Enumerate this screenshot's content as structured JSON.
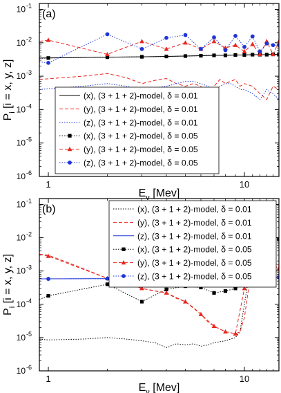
{
  "chart_data": [
    {
      "type": "line",
      "panel_label": "(a)",
      "xlabel_main": "E",
      "xlabel_sub": "ν",
      "xlabel_rest": " [Mev]",
      "ylabel_main": "P",
      "ylabel_sub": "i",
      "ylabel_rest": " [i = x, y, z]",
      "x_scale": "log",
      "y_scale": "log",
      "xlim": [
        0.9,
        15
      ],
      "ylim": [
        1e-06,
        0.15
      ],
      "x_ticks": [
        {
          "value": 1,
          "label": "1"
        },
        {
          "value": 10,
          "label": "10"
        }
      ],
      "y_ticks": [
        {
          "value": 1e-06,
          "base": "10",
          "exp": "-6"
        },
        {
          "value": 1e-05,
          "base": "10",
          "exp": "-5"
        },
        {
          "value": 0.0001,
          "base": "10",
          "exp": "-4"
        },
        {
          "value": 0.001,
          "base": "10",
          "exp": "-3"
        },
        {
          "value": 0.01,
          "base": "10",
          "exp": "-2"
        },
        {
          "value": 0.1,
          "base": "10",
          "exp": "-1"
        }
      ],
      "legend_position": "bottom-center",
      "series": [
        {
          "name": "(x), (3 + 1 + 2)-model, δ = 0.01",
          "color": "#000000",
          "dash": "solid",
          "marker": "none",
          "x": [
            0.9,
            2,
            3,
            4,
            5,
            6,
            7,
            8,
            9,
            10,
            11,
            12,
            13,
            14,
            15
          ],
          "y": [
            0.0035,
            0.0037,
            0.0038,
            0.0039,
            0.004,
            0.0041,
            0.0042,
            0.0042,
            0.0043,
            0.0043,
            0.0044,
            0.0044,
            0.0044,
            0.0045,
            0.0045
          ]
        },
        {
          "name": "(y), (3 + 1 + 2)-model, δ = 0.01",
          "color": "#e8261f",
          "dash": "5,3",
          "marker": "none",
          "x": [
            0.9,
            1.5,
            2,
            2.5,
            3,
            3.5,
            4,
            4.5,
            5,
            5.5,
            6,
            6.5,
            7,
            7.5,
            8,
            8.5,
            9,
            9.5,
            10,
            11,
            12,
            13,
            14,
            15
          ],
          "y": [
            0.0008,
            0.001,
            0.0012,
            0.0009,
            0.0006,
            0.00075,
            0.00085,
            0.0006,
            0.0005,
            0.0006,
            0.0005,
            0.00015,
            0.0005,
            0.0008,
            0.0006,
            0.0007,
            0.0008,
            0.0005,
            0.0006,
            0.0005,
            0.0003,
            0.0002,
            0.0005,
            0.0004
          ]
        },
        {
          "name": "(z), (3 + 1 + 2)-model, δ = 0.01",
          "color": "#1f35d6",
          "dash": "1.5,2",
          "marker": "none",
          "x": [
            0.9,
            1.5,
            2,
            2.5,
            3,
            3.5,
            4,
            4.5,
            5,
            5.5,
            6,
            6.5,
            7,
            7.5,
            8,
            8.5,
            9,
            9.5,
            10,
            11,
            12,
            13,
            14,
            15
          ],
          "y": [
            0.0004,
            0.0005,
            0.0006,
            0.0005,
            0.0004,
            0.00045,
            0.0005,
            0.0006,
            0.0007,
            0.0007,
            0.0006,
            0.0005,
            0.0004,
            0.0005,
            0.0006,
            0.0006,
            0.0005,
            0.0004,
            0.0004,
            0.0003,
            0.0002,
            0.0004,
            0.0003,
            0.0002
          ]
        },
        {
          "name": "(x), (3 + 1 + 2)-model, δ = 0.05",
          "color": "#000000",
          "dash": "1.5,2",
          "marker": "square",
          "x": [
            0.9,
            1,
            2,
            3,
            4,
            5,
            6,
            7,
            8,
            9,
            10,
            11,
            12,
            13,
            14,
            15
          ],
          "y": [
            0.0034,
            0.0035,
            0.0037,
            0.0038,
            0.0039,
            0.004,
            0.0041,
            0.0042,
            0.0042,
            0.0043,
            0.0043,
            0.0044,
            0.0044,
            0.0044,
            0.0045,
            0.0045
          ]
        },
        {
          "name": "(y), (3 + 1 + 2)-model, δ = 0.05",
          "color": "#e8261f",
          "dash": "5,3",
          "marker": "triangle",
          "x": [
            0.9,
            1,
            2,
            3,
            4,
            5,
            6,
            7,
            8,
            9,
            10,
            11,
            12,
            13,
            14,
            15
          ],
          "y": [
            0.011,
            0.012,
            0.0045,
            0.011,
            0.0065,
            0.01,
            0.0065,
            0.011,
            0.007,
            0.0085,
            0.0055,
            0.009,
            0.0045,
            0.011,
            0.0045,
            0.011
          ]
        },
        {
          "name": "(z), (3 + 1 + 2)-model, δ = 0.05",
          "color": "#1f35d6",
          "dash": "1.5,2",
          "marker": "circle",
          "x": [
            0.9,
            1,
            2,
            3,
            4,
            5,
            6,
            7,
            8,
            9,
            10,
            11,
            12,
            13,
            14,
            15
          ],
          "y": [
            0.0027,
            0.0025,
            0.018,
            0.0065,
            0.014,
            0.017,
            0.0065,
            0.0145,
            0.006,
            0.016,
            0.0075,
            0.0155,
            0.0055,
            0.0095,
            0.0085,
            0.0085
          ]
        }
      ]
    },
    {
      "type": "line",
      "panel_label": "(b)",
      "xlabel_main": "E",
      "xlabel_sub": "ν",
      "xlabel_rest": " [Mev]",
      "ylabel_main": "P",
      "ylabel_sub": "i",
      "ylabel_rest": " [i = x, y, z]",
      "x_scale": "log",
      "y_scale": "log",
      "xlim": [
        0.9,
        15
      ],
      "ylim": [
        1e-06,
        0.15
      ],
      "x_ticks": [
        {
          "value": 1,
          "label": "1"
        },
        {
          "value": 10,
          "label": "10"
        }
      ],
      "y_ticks": [
        {
          "value": 1e-06,
          "base": "10",
          "exp": "-6"
        },
        {
          "value": 1e-05,
          "base": "10",
          "exp": "-5"
        },
        {
          "value": 0.0001,
          "base": "10",
          "exp": "-4"
        },
        {
          "value": 0.001,
          "base": "10",
          "exp": "-3"
        },
        {
          "value": 0.01,
          "base": "10",
          "exp": "-2"
        },
        {
          "value": 0.1,
          "base": "10",
          "exp": "-1"
        }
      ],
      "legend_position": "top-right",
      "series": [
        {
          "name": "(x), (3 + 1 + 2)-model, δ = 0.01",
          "color": "#000000",
          "dash": "1.5,2",
          "marker": "none",
          "x": [
            0.9,
            1,
            1.5,
            2,
            2.5,
            3,
            3.5,
            4,
            4.5,
            5,
            5.5,
            6,
            6.5,
            7,
            7.5,
            8,
            8.5,
            9,
            9.5,
            10,
            10.5,
            11,
            12,
            13,
            14,
            15
          ],
          "y": [
            9e-06,
            8.5e-06,
            9e-06,
            1e-05,
            9e-06,
            8e-06,
            7e-06,
            5e-06,
            6.5e-06,
            6e-06,
            6.5e-06,
            5.5e-06,
            6e-06,
            7e-06,
            7.5e-06,
            8e-06,
            9e-06,
            1e-05,
            1.5e-05,
            0.0001,
            0.0006,
            0.0012,
            0.002,
            0.0014,
            0.0012,
            0.0011
          ]
        },
        {
          "name": "(y), (3 + 1 + 2)-model, δ = 0.01",
          "color": "#e8261f",
          "dash": "5,3",
          "marker": "none",
          "x": [
            0.9,
            1,
            1.5,
            2,
            2.5,
            3,
            3.5,
            4,
            4.5,
            5,
            5.5,
            6,
            6.5,
            7,
            7.5,
            8,
            8.5,
            9,
            9.5,
            10,
            10.5,
            11,
            12,
            13,
            14,
            15
          ],
          "y": [
            0.0032,
            0.003,
            0.0012,
            0.0006,
            0.0004,
            0.0003,
            0.00025,
            0.00022,
            0.00015,
            0.00012,
            8e-05,
            5e-05,
            3e-05,
            2.2e-05,
            1.8e-05,
            1.5e-05,
            1.4e-05,
            1.3e-05,
            1.5e-05,
            4e-05,
            0.0003,
            0.0009,
            0.0025,
            0.0022,
            0.0018,
            0.0015
          ]
        },
        {
          "name": "(z), (3 + 1 + 2)-model, δ = 0.01",
          "color": "#1f35d6",
          "dash": "solid",
          "marker": "none",
          "x": [
            0.9,
            2,
            3,
            4,
            5,
            6,
            7,
            8,
            9,
            10,
            11,
            12,
            13,
            14,
            15
          ],
          "y": [
            0.00058,
            0.00059,
            0.0006,
            0.0006,
            0.00061,
            0.00061,
            0.00062,
            0.00062,
            0.00063,
            0.00063,
            0.00063,
            0.00064,
            0.00064,
            0.00064,
            0.00065
          ]
        },
        {
          "name": "(x), (3 + 1 + 2)-model, δ = 0.05",
          "color": "#000000",
          "dash": "1.5,2",
          "marker": "square",
          "x": [
            0.9,
            1,
            2,
            3,
            4,
            5,
            6,
            7,
            8,
            9,
            10,
            11,
            12,
            13,
            14,
            15
          ],
          "y": [
            0.00014,
            0.00018,
            0.0004,
            0.00012,
            0.00028,
            0.00035,
            0.00032,
            0.00022,
            0.00025,
            0.0003,
            0.0004,
            0.008,
            0.02,
            0.011,
            0.0095,
            0.009
          ]
        },
        {
          "name": "(y), (3 + 1 + 2)-model, δ = 0.05",
          "color": "#e8261f",
          "dash": "5,3",
          "marker": "triangle",
          "x": [
            0.9,
            1,
            2,
            3,
            4,
            5,
            6,
            7,
            8,
            9,
            10,
            11,
            12,
            13,
            14,
            15
          ],
          "y": [
            0.0032,
            0.0028,
            0.0006,
            0.0003,
            0.00022,
            0.00012,
            5e-05,
            2.2e-05,
            1.5e-05,
            1.3e-05,
            0.0003,
            0.0025,
            0.0035,
            0.0022,
            0.0015,
            0.0012
          ]
        },
        {
          "name": "(z), (3 + 1 + 2)-model, δ = 0.05",
          "color": "#1f35d6",
          "dash": "1.5,2",
          "marker": "circle",
          "x": [
            0.9,
            1,
            2,
            3,
            4,
            5,
            6,
            7,
            8,
            9,
            10,
            11,
            12,
            13,
            14,
            15
          ],
          "y": [
            0.00058,
            0.00058,
            0.00059,
            0.0006,
            0.0006,
            0.00061,
            0.00061,
            0.00062,
            0.00062,
            0.00063,
            0.00063,
            0.00063,
            0.00064,
            0.00064,
            0.00064,
            0.00065
          ]
        }
      ]
    }
  ]
}
